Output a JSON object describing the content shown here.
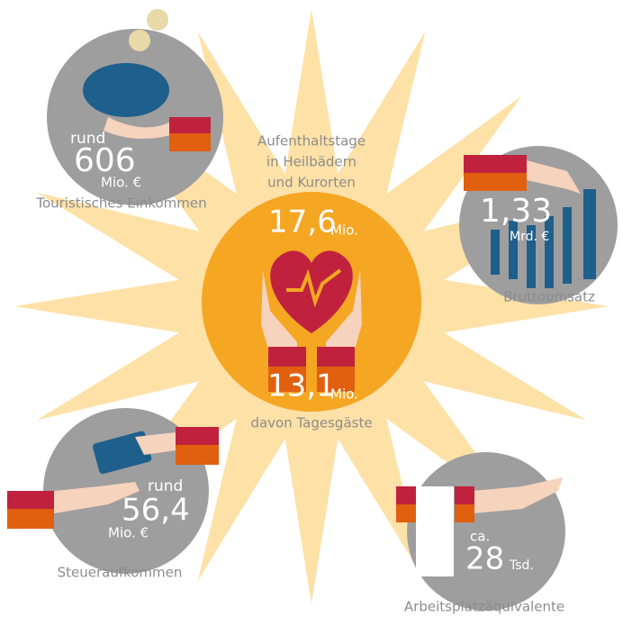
{
  "header": {
    "lines": [
      "Aufenthaltstage",
      "in Heilbädern",
      "und Kurorten"
    ]
  },
  "center": {
    "value": "17,6",
    "unit": "Mio.",
    "sub_value": "13,1",
    "sub_unit": "Mio.",
    "sub_label": "davon Tagesgäste"
  },
  "income": {
    "prefix": "rund",
    "value": "606",
    "unit": "Mio. €",
    "label": "Touristisches Einkommen"
  },
  "revenue": {
    "value": "1,33",
    "unit": "Mrd. €",
    "label": "Bruttoumsatz"
  },
  "tax": {
    "prefix": "rund",
    "value": "56,4",
    "unit": "Mio. €",
    "label": "Steueraufkommen"
  },
  "jobs": {
    "prefix": "ca.",
    "value": "28",
    "unit": "Tsd.",
    "label": "Arbeitsplatzäquivalente"
  }
}
